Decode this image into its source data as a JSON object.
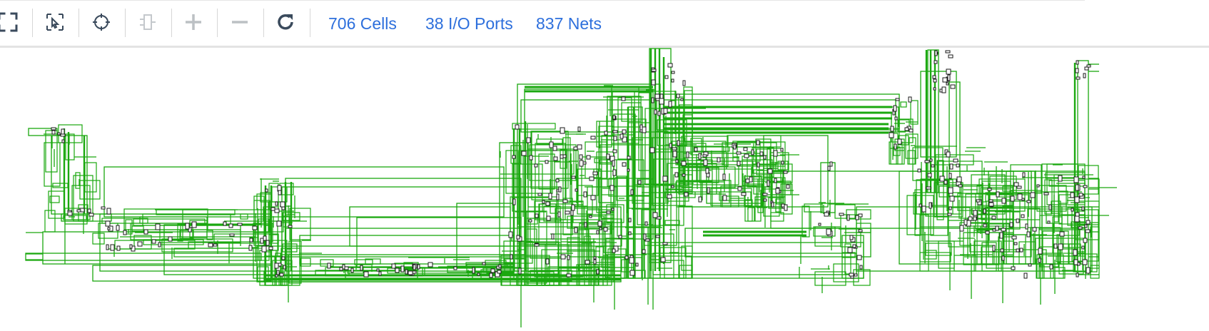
{
  "toolbar": {
    "buttons": [
      {
        "name": "fit-to-window",
        "icon": "expand-arrows-icon",
        "enabled": true
      },
      {
        "name": "select-area",
        "icon": "cursor-select-icon",
        "enabled": true
      },
      {
        "name": "crosshair",
        "icon": "crosshair-icon",
        "enabled": true
      },
      {
        "name": "hierarchy",
        "icon": "cell-hierarchy-icon",
        "enabled": false
      },
      {
        "name": "zoom-in",
        "icon": "plus-icon",
        "enabled": false
      },
      {
        "name": "zoom-out",
        "icon": "minus-icon",
        "enabled": false
      },
      {
        "name": "refresh",
        "icon": "refresh-icon",
        "enabled": true
      }
    ],
    "stats": {
      "cells": "706 Cells",
      "io_ports": "38 I/O Ports",
      "nets": "837 Nets"
    }
  },
  "schematic": {
    "wire_color": "#1aa80f",
    "cell_color": "#1a1a1a"
  }
}
